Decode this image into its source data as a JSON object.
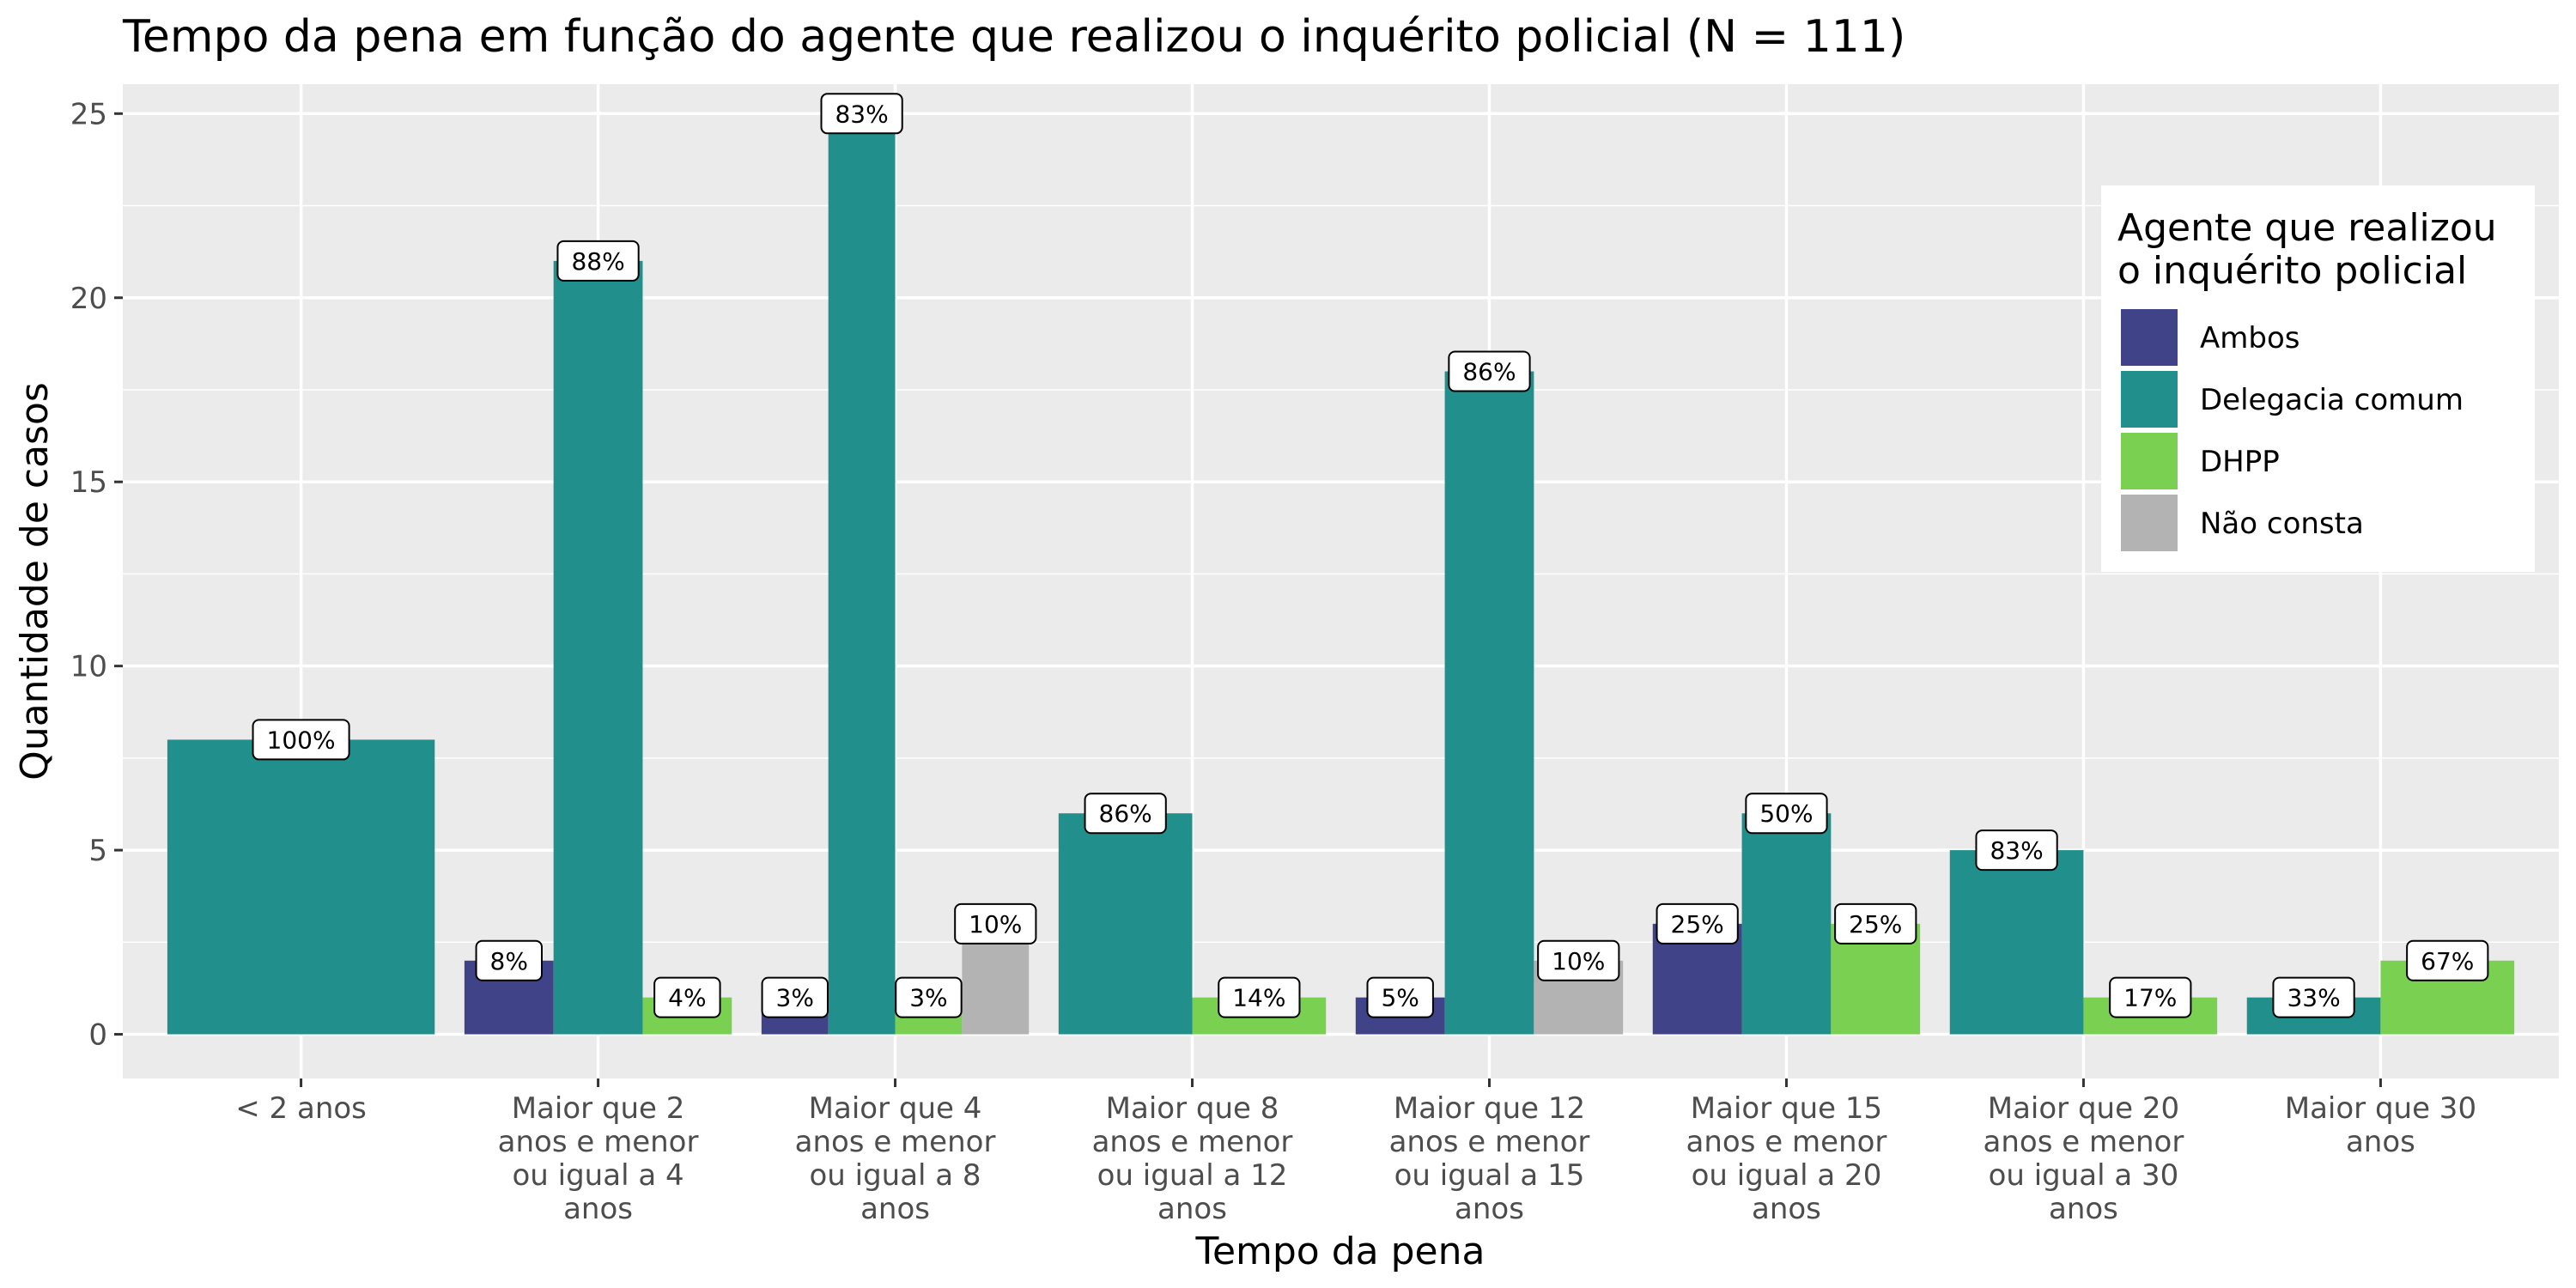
{
  "chart_data": {
    "type": "bar",
    "title": "Tempo da pena em função do agente que realizou o inquérito policial (N = 111)",
    "xlabel": "Tempo da pena",
    "ylabel": "Quantidade de casos",
    "ylim": [
      -1.2,
      25.8
    ],
    "yticks": [
      0,
      5,
      10,
      15,
      20,
      25
    ],
    "grid": true,
    "legend_position": "right",
    "legend_title": [
      "Agente que realizou",
      "o inquérito policial"
    ],
    "categories": [
      [
        "< 2 anos"
      ],
      [
        "Maior que 2",
        "anos e menor",
        "ou igual a 4",
        "anos"
      ],
      [
        "Maior que 4",
        "anos e menor",
        "ou igual a 8",
        "anos"
      ],
      [
        "Maior que 8",
        "anos e menor",
        "ou igual a 12",
        "anos"
      ],
      [
        "Maior que 12",
        "anos e menor",
        "ou igual a 15",
        "anos"
      ],
      [
        "Maior que 15",
        "anos e menor",
        "ou igual a 20",
        "anos"
      ],
      [
        "Maior que 20",
        "anos e menor",
        "ou igual a 30",
        "anos"
      ],
      [
        "Maior que 30",
        "anos"
      ]
    ],
    "series": [
      {
        "name": "Ambos",
        "color": "#404387",
        "values": [
          null,
          2,
          1,
          null,
          1,
          3,
          null,
          null
        ],
        "labels": [
          null,
          "8%",
          "3%",
          null,
          "5%",
          "25%",
          null,
          null
        ]
      },
      {
        "name": "Delegacia comum",
        "color": "#21908c",
        "values": [
          8,
          21,
          25,
          6,
          18,
          6,
          5,
          1
        ],
        "labels": [
          "100%",
          "88%",
          "83%",
          "86%",
          "86%",
          "50%",
          "83%",
          "33%"
        ]
      },
      {
        "name": "DHPP",
        "color": "#7ad151",
        "values": [
          null,
          1,
          1,
          1,
          null,
          3,
          1,
          2
        ],
        "labels": [
          null,
          "4%",
          "3%",
          "14%",
          null,
          "25%",
          "17%",
          "67%"
        ]
      },
      {
        "name": "Não consta",
        "color": "#b3b3b3",
        "values": [
          null,
          null,
          3,
          null,
          2,
          null,
          null,
          null
        ],
        "labels": [
          null,
          null,
          "10%",
          null,
          "10%",
          null,
          null,
          null
        ]
      }
    ]
  }
}
